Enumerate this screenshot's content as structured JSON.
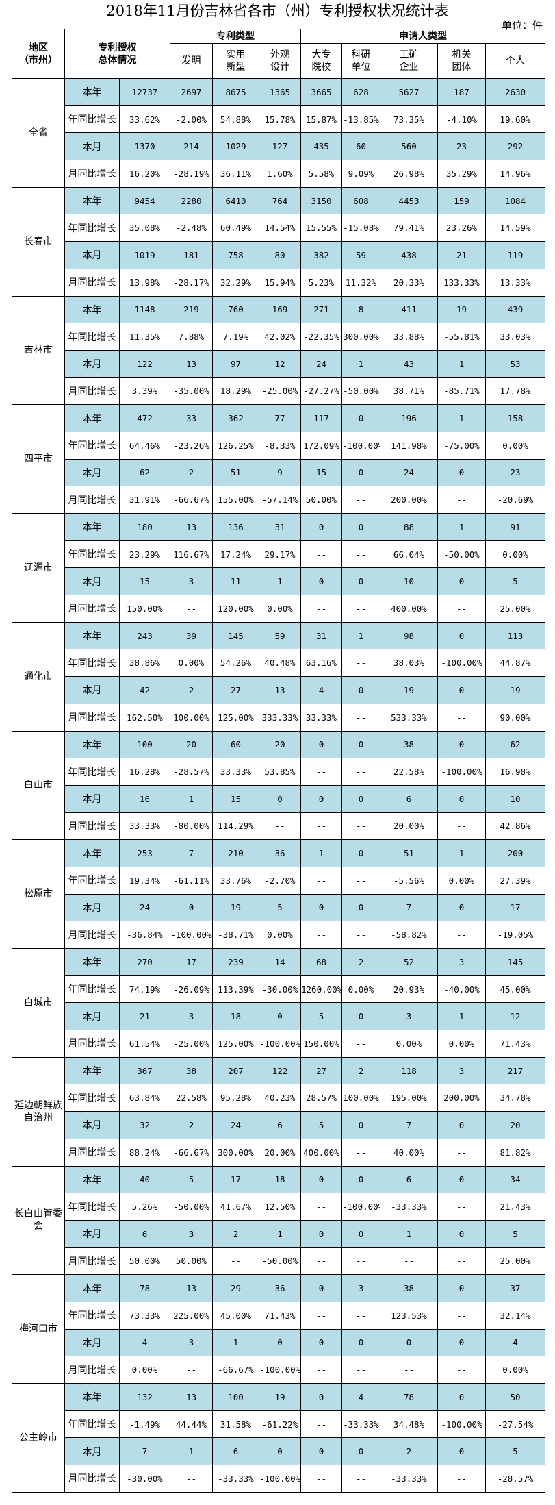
{
  "title": "2018年11月份吉林省各市（州）专利授权状况统计表",
  "unit": "单位：件",
  "header": {
    "region": [
      "地区",
      "（市州）"
    ],
    "total": [
      "专利授权",
      "总体情况"
    ],
    "patent_type": "专利类型",
    "applicant_type": "申请人类型",
    "cols": [
      [
        "发明"
      ],
      [
        "实用",
        "新型"
      ],
      [
        "外观",
        "设计"
      ],
      [
        "大专",
        "院校"
      ],
      [
        "科研",
        "单位"
      ],
      [
        "工矿",
        "企业"
      ],
      [
        "机关",
        "团体"
      ],
      [
        "个人"
      ]
    ]
  },
  "row_labels": [
    "本年",
    "年同比增长",
    "本月",
    "月同比增长"
  ],
  "colors": {
    "highlight": "#b7dde8",
    "border": "#000000"
  },
  "regions": [
    {
      "name": "全省",
      "rows": [
        [
          "12737",
          "2697",
          "8675",
          "1365",
          "3665",
          "628",
          "5627",
          "187",
          "2630"
        ],
        [
          "33.62%",
          "-2.00%",
          "54.88%",
          "15.78%",
          "15.87%",
          "-13.85%",
          "73.35%",
          "-4.10%",
          "19.60%"
        ],
        [
          "1370",
          "214",
          "1029",
          "127",
          "435",
          "60",
          "560",
          "23",
          "292"
        ],
        [
          "16.20%",
          "-28.19%",
          "36.11%",
          "1.60%",
          "5.58%",
          "9.09%",
          "26.98%",
          "35.29%",
          "14.96%"
        ]
      ]
    },
    {
      "name": "长春市",
      "rows": [
        [
          "9454",
          "2280",
          "6410",
          "764",
          "3150",
          "608",
          "4453",
          "159",
          "1084"
        ],
        [
          "35.08%",
          "-2.48%",
          "60.49%",
          "14.54%",
          "15.55%",
          "-15.08%",
          "79.41%",
          "23.26%",
          "14.59%"
        ],
        [
          "1019",
          "181",
          "758",
          "80",
          "382",
          "59",
          "438",
          "21",
          "119"
        ],
        [
          "13.98%",
          "-28.17%",
          "32.29%",
          "15.94%",
          "5.23%",
          "11.32%",
          "20.33%",
          "133.33%",
          "13.33%"
        ]
      ]
    },
    {
      "name": "吉林市",
      "rows": [
        [
          "1148",
          "219",
          "760",
          "169",
          "271",
          "8",
          "411",
          "19",
          "439"
        ],
        [
          "11.35%",
          "7.88%",
          "7.19%",
          "42.02%",
          "-22.35%",
          "300.00%",
          "33.88%",
          "-55.81%",
          "33.03%"
        ],
        [
          "122",
          "13",
          "97",
          "12",
          "24",
          "1",
          "43",
          "1",
          "53"
        ],
        [
          "3.39%",
          "-35.00%",
          "18.29%",
          "-25.00%",
          "-27.27%",
          "-50.00%",
          "38.71%",
          "-85.71%",
          "17.78%"
        ]
      ]
    },
    {
      "name": "四平市",
      "rows": [
        [
          "472",
          "33",
          "362",
          "77",
          "117",
          "0",
          "196",
          "1",
          "158"
        ],
        [
          "64.46%",
          "-23.26%",
          "126.25%",
          "-8.33%",
          "172.09%",
          "-100.00%",
          "141.98%",
          "-75.00%",
          "0.00%"
        ],
        [
          "62",
          "2",
          "51",
          "9",
          "15",
          "0",
          "24",
          "0",
          "23"
        ],
        [
          "31.91%",
          "-66.67%",
          "155.00%",
          "-57.14%",
          "50.00%",
          "--",
          "200.00%",
          "--",
          "-20.69%"
        ]
      ]
    },
    {
      "name": "辽源市",
      "rows": [
        [
          "180",
          "13",
          "136",
          "31",
          "0",
          "0",
          "88",
          "1",
          "91"
        ],
        [
          "23.29%",
          "116.67%",
          "17.24%",
          "29.17%",
          "--",
          "--",
          "66.04%",
          "-50.00%",
          "0.00%"
        ],
        [
          "15",
          "3",
          "11",
          "1",
          "0",
          "0",
          "10",
          "0",
          "5"
        ],
        [
          "150.00%",
          "--",
          "120.00%",
          "0.00%",
          "--",
          "--",
          "400.00%",
          "--",
          "25.00%"
        ]
      ]
    },
    {
      "name": "通化市",
      "rows": [
        [
          "243",
          "39",
          "145",
          "59",
          "31",
          "1",
          "98",
          "0",
          "113"
        ],
        [
          "38.86%",
          "0.00%",
          "54.26%",
          "40.48%",
          "63.16%",
          "--",
          "38.03%",
          "-100.00%",
          "44.87%"
        ],
        [
          "42",
          "2",
          "27",
          "13",
          "4",
          "0",
          "19",
          "0",
          "19"
        ],
        [
          "162.50%",
          "100.00%",
          "125.00%",
          "333.33%",
          "33.33%",
          "--",
          "533.33%",
          "--",
          "90.00%"
        ]
      ]
    },
    {
      "name": "白山市",
      "rows": [
        [
          "100",
          "20",
          "60",
          "20",
          "0",
          "0",
          "38",
          "0",
          "62"
        ],
        [
          "16.28%",
          "-28.57%",
          "33.33%",
          "53.85%",
          "--",
          "--",
          "22.58%",
          "-100.00%",
          "16.98%"
        ],
        [
          "16",
          "1",
          "15",
          "0",
          "0",
          "0",
          "6",
          "0",
          "10"
        ],
        [
          "33.33%",
          "-80.00%",
          "114.29%",
          "--",
          "--",
          "--",
          "20.00%",
          "--",
          "42.86%"
        ]
      ]
    },
    {
      "name": "松原市",
      "rows": [
        [
          "253",
          "7",
          "210",
          "36",
          "1",
          "0",
          "51",
          "1",
          "200"
        ],
        [
          "19.34%",
          "-61.11%",
          "33.76%",
          "-2.70%",
          "--",
          "--",
          "-5.56%",
          "0.00%",
          "27.39%"
        ],
        [
          "24",
          "0",
          "19",
          "5",
          "0",
          "0",
          "7",
          "0",
          "17"
        ],
        [
          "-36.84%",
          "-100.00%",
          "-38.71%",
          "0.00%",
          "--",
          "--",
          "-58.82%",
          "--",
          "-19.05%"
        ]
      ]
    },
    {
      "name": "白城市",
      "rows": [
        [
          "270",
          "17",
          "239",
          "14",
          "68",
          "2",
          "52",
          "3",
          "145"
        ],
        [
          "74.19%",
          "-26.09%",
          "113.39%",
          "-30.00%",
          "1260.00%",
          "0.00%",
          "20.93%",
          "-40.00%",
          "45.00%"
        ],
        [
          "21",
          "3",
          "18",
          "0",
          "5",
          "0",
          "3",
          "1",
          "12"
        ],
        [
          "61.54%",
          "-25.00%",
          "125.00%",
          "-100.00%",
          "150.00%",
          "--",
          "0.00%",
          "0.00%",
          "71.43%"
        ]
      ]
    },
    {
      "name": "延边朝鲜族自治州",
      "rows": [
        [
          "367",
          "38",
          "207",
          "122",
          "27",
          "2",
          "118",
          "3",
          "217"
        ],
        [
          "63.84%",
          "22.58%",
          "95.28%",
          "40.23%",
          "28.57%",
          "100.00%",
          "195.00%",
          "200.00%",
          "34.78%"
        ],
        [
          "32",
          "2",
          "24",
          "6",
          "5",
          "0",
          "7",
          "0",
          "20"
        ],
        [
          "88.24%",
          "-66.67%",
          "300.00%",
          "20.00%",
          "400.00%",
          "--",
          "40.00%",
          "--",
          "81.82%"
        ]
      ]
    },
    {
      "name": "长白山管委会",
      "rows": [
        [
          "40",
          "5",
          "17",
          "18",
          "0",
          "0",
          "6",
          "0",
          "34"
        ],
        [
          "5.26%",
          "-50.00%",
          "41.67%",
          "12.50%",
          "--",
          "-100.00%",
          "-33.33%",
          "--",
          "21.43%"
        ],
        [
          "6",
          "3",
          "2",
          "1",
          "0",
          "0",
          "1",
          "0",
          "5"
        ],
        [
          "50.00%",
          "50.00%",
          "--",
          "-50.00%",
          "--",
          "--",
          "--",
          "--",
          "25.00%"
        ]
      ]
    },
    {
      "name": "梅河口市",
      "rows": [
        [
          "78",
          "13",
          "29",
          "36",
          "0",
          "3",
          "38",
          "0",
          "37"
        ],
        [
          "73.33%",
          "225.00%",
          "45.00%",
          "71.43%",
          "--",
          "--",
          "123.53%",
          "--",
          "32.14%"
        ],
        [
          "4",
          "3",
          "1",
          "0",
          "0",
          "0",
          "0",
          "0",
          "4"
        ],
        [
          "0.00%",
          "--",
          "-66.67%",
          "-100.00%",
          "--",
          "--",
          "--",
          "--",
          "0.00%"
        ]
      ]
    },
    {
      "name": "公主岭市",
      "rows": [
        [
          "132",
          "13",
          "100",
          "19",
          "0",
          "4",
          "78",
          "0",
          "50"
        ],
        [
          "-1.49%",
          "44.44%",
          "31.58%",
          "-61.22%",
          "--",
          "-33.33%",
          "34.48%",
          "-100.00%",
          "-27.54%"
        ],
        [
          "7",
          "1",
          "6",
          "0",
          "0",
          "0",
          "2",
          "0",
          "5"
        ],
        [
          "-30.00%",
          "--",
          "-33.33%",
          "-100.00%",
          "--",
          "--",
          "-33.33%",
          "--",
          "-28.57%"
        ]
      ]
    }
  ]
}
